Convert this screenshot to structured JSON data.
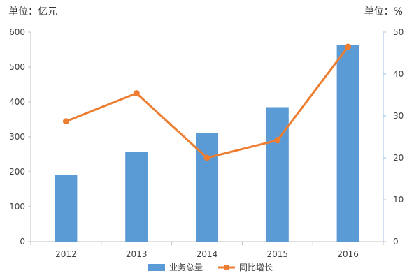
{
  "chart_data": {
    "type": "bar+line",
    "categories": [
      "2012",
      "2013",
      "2014",
      "2015",
      "2016"
    ],
    "series": [
      {
        "name": "业务总量",
        "type": "bar",
        "axis": "left",
        "color": "#5b9bd5",
        "values": [
          190,
          258,
          310,
          385,
          562
        ]
      },
      {
        "name": "同比增长",
        "type": "line",
        "axis": "right",
        "color": "#ed7d31",
        "values": [
          28.7,
          35.4,
          20.0,
          24.2,
          46.5
        ]
      }
    ],
    "unit_left": "单位：亿元",
    "unit_right": "单位：%",
    "ylim_left": [
      0,
      600
    ],
    "yticks_left": [
      "0",
      "100",
      "200",
      "300",
      "400",
      "500",
      "600"
    ],
    "ylim_right": [
      0,
      50
    ],
    "yticks_right": [
      "0",
      "10",
      "20",
      "30",
      "40",
      "50"
    ],
    "grid": false,
    "legend_position": "bottom"
  }
}
